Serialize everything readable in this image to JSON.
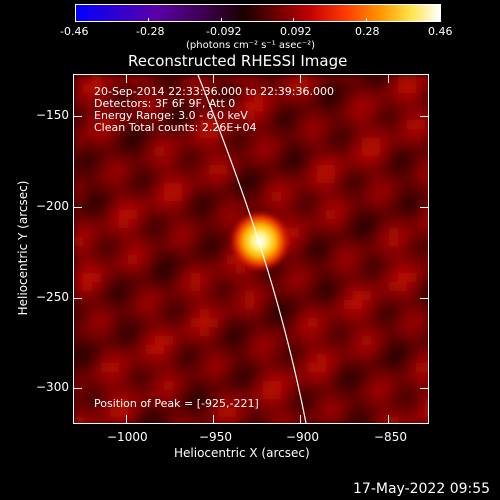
{
  "colorbar": {
    "ticks": [
      "-0.46",
      "-0.28",
      "-0.092",
      "0.092",
      "0.28",
      "0.46"
    ],
    "unit_label": "(photons cm⁻² s⁻¹ asec⁻²)"
  },
  "figure": {
    "title": "Reconstructed RHESSI Image",
    "info_lines": [
      "20-Sep-2014 22:33:36.000 to 22:39:36.000",
      "Detectors: 3F 6F 9F, Att 0",
      "Energy Range: 3.0 - 6.0 keV",
      "Clean    Total counts: 2.26E+04"
    ],
    "peak_text": "Position of Peak = [-925,-221]",
    "x_label": "Heliocentric X (arcsec)",
    "y_label": "Heliocentric Y (arcsec)",
    "x_ticks": [
      "−1000",
      "−950",
      "−900",
      "−850"
    ],
    "y_ticks": [
      "−150",
      "−200",
      "−250",
      "−300"
    ],
    "timestamp": "17-May-2022 09:55"
  }
}
